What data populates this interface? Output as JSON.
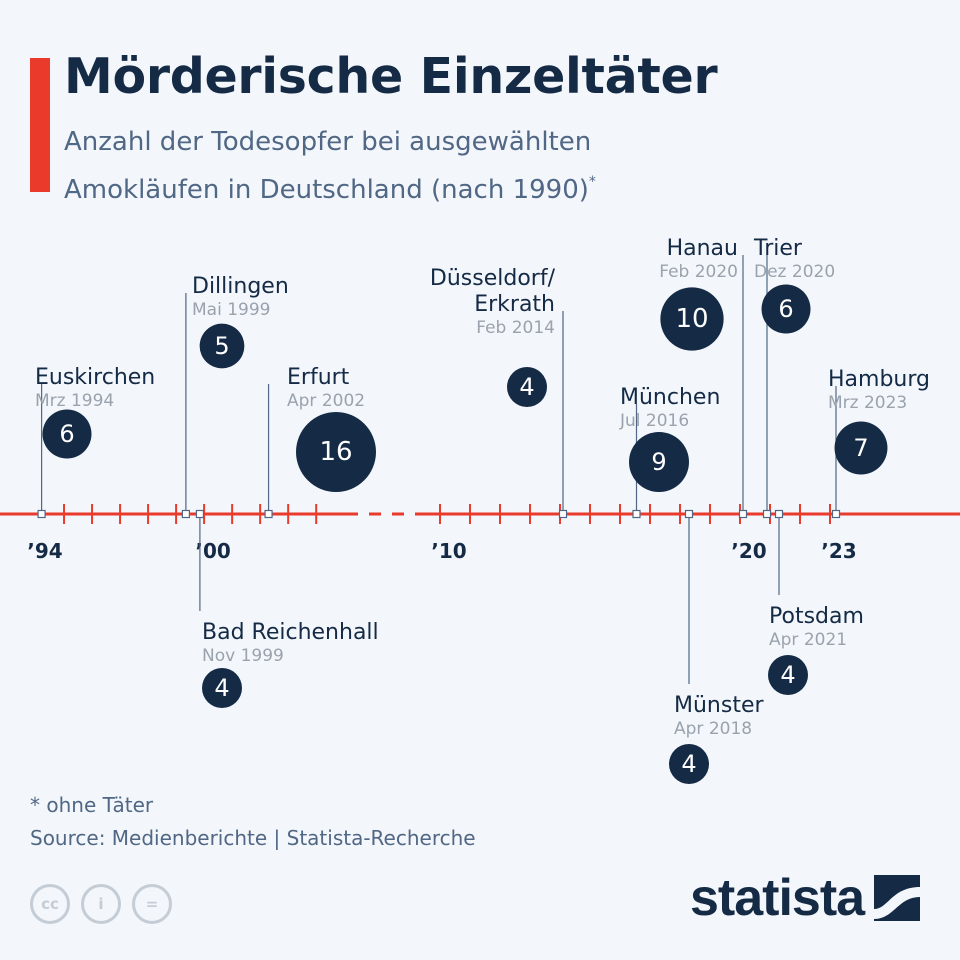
{
  "header": {
    "title": "Mörderische Einzeltäter",
    "subtitle_line1": "Anzahl der Todesopfer bei ausgewählten",
    "subtitle_line2": "Amokläufen in Deutschland (nach 1990)",
    "subtitle_mark": "*"
  },
  "colors": {
    "accent": "#ea3a2c",
    "bubble": "#142a45",
    "axis": "#ea3a2c",
    "date_text": "#9aa3ad",
    "label_text": "#142a45"
  },
  "chart_data": {
    "type": "timeline",
    "x_unit": "year",
    "axis_tick_labels": [
      {
        "year": 1994,
        "label": "’94"
      },
      {
        "year": 2000,
        "label": "’00"
      },
      {
        "year": 2010,
        "label": "’10"
      },
      {
        "year": 2020,
        "label": "’20"
      },
      {
        "year": 2023,
        "label": "’23"
      }
    ],
    "axis_break": "dashed segment between 2005 and 2009",
    "events": [
      {
        "place": "Euskirchen",
        "date": "Mrz 1994",
        "year": 1994.2,
        "victims": 6,
        "side": "above"
      },
      {
        "place": "Dillingen",
        "date": "Mai 1999",
        "year": 1999.35,
        "victims": 5,
        "side": "above"
      },
      {
        "place": "Bad Reichenhall",
        "date": "Nov 1999",
        "year": 1999.85,
        "victims": 4,
        "side": "below"
      },
      {
        "place": "Erfurt",
        "date": "Apr 2002",
        "year": 2002.3,
        "victims": 16,
        "side": "above"
      },
      {
        "place": "Düsseldorf/\nErkrath",
        "date": "Feb 2014",
        "year": 2014.1,
        "victims": 4,
        "side": "above"
      },
      {
        "place": "München",
        "date": "Jul 2016",
        "year": 2016.55,
        "victims": 9,
        "side": "above"
      },
      {
        "place": "Münster",
        "date": "Apr 2018",
        "year": 2018.3,
        "victims": 4,
        "side": "below"
      },
      {
        "place": "Hanau",
        "date": "Feb 2020",
        "year": 2020.1,
        "victims": 10,
        "side": "above"
      },
      {
        "place": "Trier",
        "date": "Dez 2020",
        "year": 2020.9,
        "victims": 6,
        "side": "above"
      },
      {
        "place": "Potsdam",
        "date": "Apr 2021",
        "year": 2021.3,
        "victims": 4,
        "side": "below"
      },
      {
        "place": "Hamburg",
        "date": "Mrz 2023",
        "year": 2023.2,
        "victims": 7,
        "side": "above"
      }
    ]
  },
  "footer": {
    "footnote": "* ohne Täter",
    "source": "Source: Medienberichte | Statista-Recherche",
    "brand": "statista",
    "license_icons": [
      "cc-icon",
      "by-icon",
      "nd-icon"
    ],
    "license_labels": [
      "cc",
      "i",
      "="
    ]
  }
}
